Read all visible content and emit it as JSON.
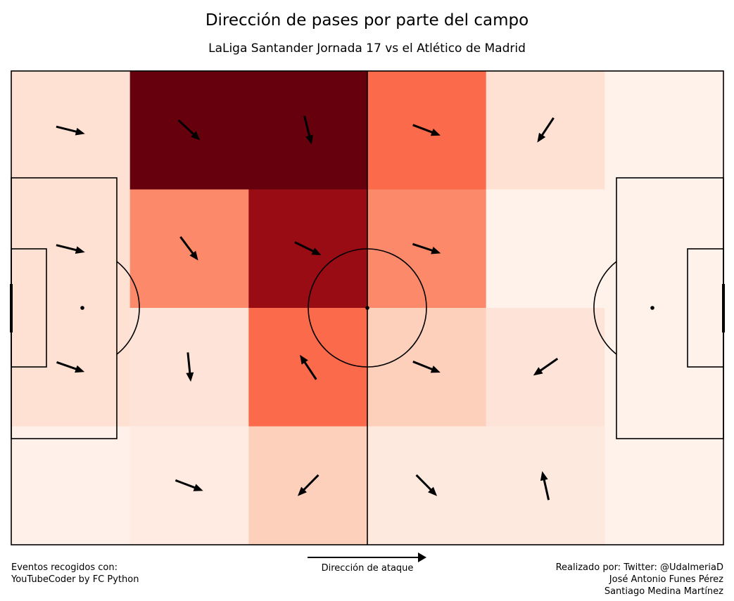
{
  "header": {
    "title": "Dirección de pases por parte del campo",
    "subtitle": "LaLiga Santander Jornada 17 vs el Atlético de Madrid"
  },
  "footer": {
    "source_line1": "Eventos recogidos con:",
    "source_line2": "YouTubeCoder by FC Python",
    "attack_direction_label": "Dirección de ataque",
    "credit_line1": "Realizado por: Twitter: @UdalmeriaD",
    "credit_line2": "José Antonio Funes Pérez",
    "credit_line3": "Santiago Medina Martínez"
  },
  "chart_data": {
    "type": "heatmap",
    "title": "Dirección de pases por parte del campo",
    "subtitle": "LaLiga Santander Jornada 17 vs el Atlético de Madrid",
    "pitch": {
      "length": 120,
      "width": 80
    },
    "grid": {
      "columns": 6,
      "rows": 4
    },
    "colormap": "Reds",
    "scale_max": 1.0,
    "intensity": [
      [
        0.12,
        1.0,
        1.0,
        0.5,
        0.12,
        0.02
      ],
      [
        0.12,
        0.4,
        0.9,
        0.4,
        0.02,
        0.02
      ],
      [
        0.12,
        0.1,
        0.5,
        0.18,
        0.1,
        0.02
      ],
      [
        0.03,
        0.06,
        0.18,
        0.07,
        0.07,
        0.02
      ]
    ],
    "arrows": [
      [
        [
          1.0,
          0.25
        ],
        [
          0.73,
          0.68
        ],
        [
          0.24,
          0.96
        ],
        [
          1.0,
          0.38
        ],
        [
          -0.55,
          0.83
        ],
        null
      ],
      [
        [
          1.0,
          0.25
        ],
        [
          0.6,
          0.8
        ],
        [
          0.9,
          0.44
        ],
        [
          1.0,
          0.33
        ],
        null,
        null
      ],
      [
        [
          1.0,
          0.35
        ],
        [
          0.1,
          1.0
        ],
        [
          -0.55,
          -0.83
        ],
        [
          1.0,
          0.4
        ],
        [
          -0.82,
          0.57
        ],
        null
      ],
      [
        null,
        [
          1.0,
          0.38
        ],
        [
          -0.7,
          0.71
        ],
        [
          0.7,
          0.71
        ],
        [
          -0.22,
          -0.98
        ],
        null
      ]
    ]
  }
}
